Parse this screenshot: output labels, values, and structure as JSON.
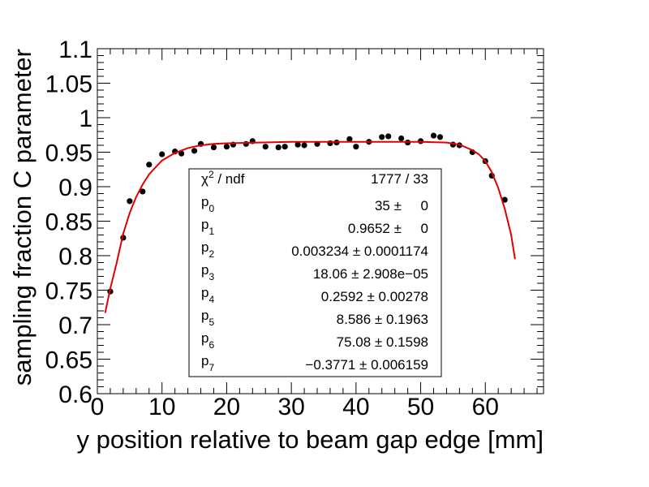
{
  "chart_data": {
    "type": "scatter",
    "xlabel": "y position relative to beam gap edge [mm]",
    "ylabel": "sampling fraction C parameter",
    "xlim": [
      0,
      69
    ],
    "ylim": [
      0.6,
      1.1
    ],
    "x_ticks": [
      "0",
      "10",
      "20",
      "30",
      "40",
      "50",
      "60"
    ],
    "y_ticks": [
      "0.6",
      "0.65",
      "0.7",
      "0.75",
      "0.8",
      "0.85",
      "0.9",
      "0.95",
      "1",
      "1.05",
      "1.1"
    ],
    "grid": false,
    "colors": {
      "points": "#000000",
      "fit": "#e00000"
    },
    "series": [
      {
        "values": [
          [
            2,
            0.748
          ],
          [
            4,
            0.826
          ],
          [
            5,
            0.879
          ],
          [
            7,
            0.893
          ],
          [
            8,
            0.932
          ],
          [
            10,
            0.947
          ],
          [
            12,
            0.951
          ],
          [
            13,
            0.948
          ],
          [
            15,
            0.952
          ],
          [
            16,
            0.962
          ],
          [
            18,
            0.957
          ],
          [
            20,
            0.958
          ],
          [
            21,
            0.961
          ],
          [
            23,
            0.962
          ],
          [
            24,
            0.966
          ],
          [
            26,
            0.958
          ],
          [
            28,
            0.957
          ],
          [
            29,
            0.958
          ],
          [
            31,
            0.961
          ],
          [
            32,
            0.96
          ],
          [
            34,
            0.962
          ],
          [
            36,
            0.963
          ],
          [
            37,
            0.964
          ],
          [
            39,
            0.969
          ],
          [
            40,
            0.958
          ],
          [
            42,
            0.965
          ],
          [
            44,
            0.972
          ],
          [
            45,
            0.973
          ],
          [
            47,
            0.97
          ],
          [
            48,
            0.964
          ],
          [
            50,
            0.966
          ],
          [
            52,
            0.974
          ],
          [
            53,
            0.972
          ],
          [
            55,
            0.961
          ],
          [
            56,
            0.96
          ],
          [
            58,
            0.95
          ],
          [
            60,
            0.937
          ],
          [
            61,
            0.916
          ],
          [
            63,
            0.881
          ]
        ]
      }
    ],
    "fit_curve": [
      [
        1.2,
        0.717
      ],
      [
        2,
        0.752
      ],
      [
        3,
        0.79
      ],
      [
        4,
        0.832
      ],
      [
        5,
        0.862
      ],
      [
        6,
        0.885
      ],
      [
        7,
        0.903
      ],
      [
        8,
        0.918
      ],
      [
        10,
        0.938
      ],
      [
        12,
        0.949
      ],
      [
        14,
        0.956
      ],
      [
        16,
        0.96
      ],
      [
        18,
        0.962
      ],
      [
        20,
        0.963
      ],
      [
        25,
        0.964
      ],
      [
        30,
        0.965
      ],
      [
        40,
        0.965
      ],
      [
        50,
        0.965
      ],
      [
        54,
        0.964
      ],
      [
        56,
        0.961
      ],
      [
        58,
        0.953
      ],
      [
        59,
        0.947
      ],
      [
        60,
        0.937
      ],
      [
        61,
        0.921
      ],
      [
        62,
        0.898
      ],
      [
        63,
        0.868
      ],
      [
        64,
        0.83
      ],
      [
        64.6,
        0.795
      ]
    ],
    "stats_box": {
      "rows": [
        {
          "base": "χ",
          "sup": "2",
          "suffix": " / ndf",
          "value": "1777 / 33"
        },
        {
          "base": "p",
          "sub": "0",
          "value": "35 ±     0"
        },
        {
          "base": "p",
          "sub": "1",
          "value": "0.9652 ±     0"
        },
        {
          "base": "p",
          "sub": "2",
          "value": "0.003234 ± 0.0001174"
        },
        {
          "base": "p",
          "sub": "3",
          "value": "18.06 ± 2.908e−05"
        },
        {
          "base": "p",
          "sub": "4",
          "value": "0.2592 ± 0.00278"
        },
        {
          "base": "p",
          "sub": "5",
          "value": "8.586 ± 0.1963"
        },
        {
          "base": "p",
          "sub": "6",
          "value": "75.08 ± 0.1598"
        },
        {
          "base": "p",
          "sub": "7",
          "value": "−0.3771 ± 0.006159"
        }
      ]
    }
  }
}
